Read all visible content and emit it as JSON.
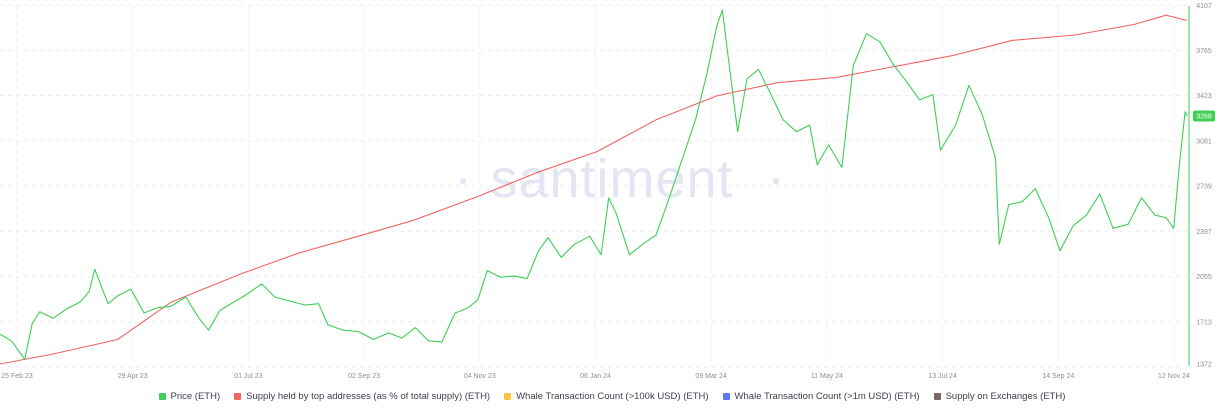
{
  "watermark": "santiment",
  "chart_data": {
    "type": "line",
    "x_labels": [
      "25 Feb 23",
      "29 Apr 23",
      "01 Jul 23",
      "02 Sep 23",
      "04 Nov 23",
      "06 Jan 24",
      "09 Mar 24",
      "11 May 24",
      "13 Jul 24",
      "14 Sep 24",
      "12 Nov 24"
    ],
    "x_range": [
      "2023-02-25",
      "2024-11-12"
    ],
    "y_ticks": [
      1372,
      1713,
      2055,
      2397,
      2739,
      3081,
      3423,
      3765,
      4107
    ],
    "ylim": [
      1372,
      4107
    ],
    "current_price_label": "3268",
    "grid": true,
    "legend_position": "bottom",
    "series": [
      {
        "name": "Price (ETH)",
        "color": "#3ecf56",
        "points": [
          [
            "2023-02-25",
            1620
          ],
          [
            "2023-03-03",
            1570
          ],
          [
            "2023-03-10",
            1430
          ],
          [
            "2023-03-14",
            1700
          ],
          [
            "2023-03-18",
            1790
          ],
          [
            "2023-03-25",
            1740
          ],
          [
            "2023-04-01",
            1810
          ],
          [
            "2023-04-08",
            1860
          ],
          [
            "2023-04-13",
            1940
          ],
          [
            "2023-04-16",
            2110
          ],
          [
            "2023-04-20",
            1960
          ],
          [
            "2023-04-23",
            1850
          ],
          [
            "2023-04-28",
            1910
          ],
          [
            "2023-05-05",
            1960
          ],
          [
            "2023-05-12",
            1780
          ],
          [
            "2023-05-19",
            1820
          ],
          [
            "2023-05-26",
            1830
          ],
          [
            "2023-06-03",
            1900
          ],
          [
            "2023-06-10",
            1740
          ],
          [
            "2023-06-15",
            1650
          ],
          [
            "2023-06-21",
            1800
          ],
          [
            "2023-06-28",
            1860
          ],
          [
            "2023-07-05",
            1920
          ],
          [
            "2023-07-13",
            2000
          ],
          [
            "2023-07-20",
            1900
          ],
          [
            "2023-07-28",
            1870
          ],
          [
            "2023-08-05",
            1840
          ],
          [
            "2023-08-12",
            1850
          ],
          [
            "2023-08-17",
            1690
          ],
          [
            "2023-08-25",
            1650
          ],
          [
            "2023-09-02",
            1640
          ],
          [
            "2023-09-10",
            1580
          ],
          [
            "2023-09-18",
            1630
          ],
          [
            "2023-09-25",
            1590
          ],
          [
            "2023-10-02",
            1670
          ],
          [
            "2023-10-09",
            1570
          ],
          [
            "2023-10-16",
            1560
          ],
          [
            "2023-10-23",
            1780
          ],
          [
            "2023-10-30",
            1820
          ],
          [
            "2023-11-04",
            1880
          ],
          [
            "2023-11-09",
            2100
          ],
          [
            "2023-11-16",
            2050
          ],
          [
            "2023-11-23",
            2060
          ],
          [
            "2023-11-30",
            2040
          ],
          [
            "2023-12-06",
            2250
          ],
          [
            "2023-12-11",
            2350
          ],
          [
            "2023-12-18",
            2200
          ],
          [
            "2023-12-25",
            2300
          ],
          [
            "2024-01-02",
            2360
          ],
          [
            "2024-01-08",
            2220
          ],
          [
            "2024-01-12",
            2650
          ],
          [
            "2024-01-16",
            2530
          ],
          [
            "2024-01-23",
            2220
          ],
          [
            "2024-01-30",
            2300
          ],
          [
            "2024-02-06",
            2370
          ],
          [
            "2024-02-13",
            2650
          ],
          [
            "2024-02-20",
            2950
          ],
          [
            "2024-02-27",
            3250
          ],
          [
            "2024-03-04",
            3600
          ],
          [
            "2024-03-09",
            3950
          ],
          [
            "2024-03-12",
            4070
          ],
          [
            "2024-03-15",
            3720
          ],
          [
            "2024-03-20",
            3150
          ],
          [
            "2024-03-25",
            3550
          ],
          [
            "2024-03-31",
            3620
          ],
          [
            "2024-04-06",
            3450
          ],
          [
            "2024-04-13",
            3240
          ],
          [
            "2024-04-20",
            3150
          ],
          [
            "2024-04-27",
            3200
          ],
          [
            "2024-05-01",
            2900
          ],
          [
            "2024-05-07",
            3050
          ],
          [
            "2024-05-14",
            2880
          ],
          [
            "2024-05-20",
            3650
          ],
          [
            "2024-05-27",
            3890
          ],
          [
            "2024-06-03",
            3830
          ],
          [
            "2024-06-10",
            3660
          ],
          [
            "2024-06-17",
            3530
          ],
          [
            "2024-06-24",
            3390
          ],
          [
            "2024-07-01",
            3430
          ],
          [
            "2024-07-05",
            3010
          ],
          [
            "2024-07-13",
            3200
          ],
          [
            "2024-07-20",
            3500
          ],
          [
            "2024-07-27",
            3280
          ],
          [
            "2024-08-03",
            2950
          ],
          [
            "2024-08-05",
            2300
          ],
          [
            "2024-08-10",
            2600
          ],
          [
            "2024-08-17",
            2620
          ],
          [
            "2024-08-24",
            2720
          ],
          [
            "2024-08-31",
            2500
          ],
          [
            "2024-09-06",
            2250
          ],
          [
            "2024-09-13",
            2440
          ],
          [
            "2024-09-20",
            2520
          ],
          [
            "2024-09-27",
            2680
          ],
          [
            "2024-10-04",
            2420
          ],
          [
            "2024-10-12",
            2450
          ],
          [
            "2024-10-19",
            2650
          ],
          [
            "2024-10-26",
            2520
          ],
          [
            "2024-11-01",
            2500
          ],
          [
            "2024-11-05",
            2420
          ],
          [
            "2024-11-08",
            2900
          ],
          [
            "2024-11-11",
            3300
          ],
          [
            "2024-11-12",
            3268
          ]
        ]
      },
      {
        "name": "Supply held by top addresses (as % of total supply) (ETH)",
        "color": "#f06464",
        "points": [
          [
            "2023-02-25",
            1395
          ],
          [
            "2023-03-25",
            1470
          ],
          [
            "2023-04-28",
            1580
          ],
          [
            "2023-05-26",
            1860
          ],
          [
            "2023-07-01",
            2070
          ],
          [
            "2023-08-01",
            2230
          ],
          [
            "2023-09-02",
            2360
          ],
          [
            "2023-10-01",
            2480
          ],
          [
            "2023-11-04",
            2660
          ],
          [
            "2023-12-05",
            2840
          ],
          [
            "2024-01-06",
            3000
          ],
          [
            "2024-02-06",
            3240
          ],
          [
            "2024-03-09",
            3420
          ],
          [
            "2024-04-10",
            3520
          ],
          [
            "2024-05-11",
            3560
          ],
          [
            "2024-06-10",
            3640
          ],
          [
            "2024-07-13",
            3730
          ],
          [
            "2024-08-12",
            3840
          ],
          [
            "2024-09-14",
            3880
          ],
          [
            "2024-10-15",
            3960
          ],
          [
            "2024-11-01",
            4030
          ],
          [
            "2024-11-12",
            3990
          ]
        ]
      }
    ]
  },
  "legend": {
    "items": [
      {
        "label": "Price (ETH)",
        "color": "#3ecf56"
      },
      {
        "label": "Supply held by top addresses (as % of total supply) (ETH)",
        "color": "#f06464"
      },
      {
        "label": "Whale Transaction Count (>100k USD) (ETH)",
        "color": "#f5c542"
      },
      {
        "label": "Whale Transaction Count (>1m USD) (ETH)",
        "color": "#5b7cf0"
      },
      {
        "label": "Supply on Exchanges (ETH)",
        "color": "#7a6663"
      }
    ]
  }
}
